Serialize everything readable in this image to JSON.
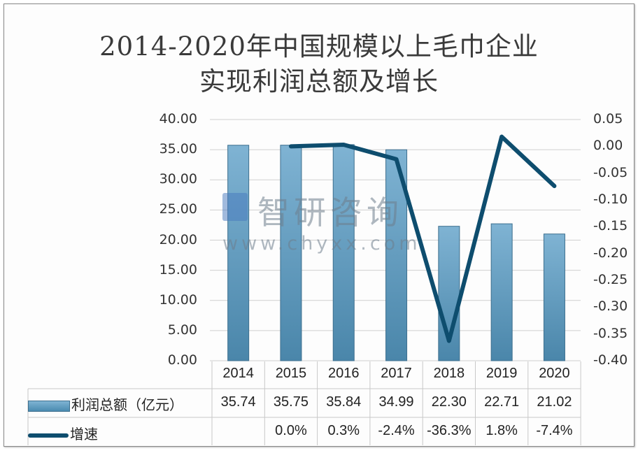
{
  "title": {
    "line1": "2014-2020年中国规模以上毛巾企业",
    "line2": "实现利润总额及增长"
  },
  "watermark": {
    "name": "智研咨询",
    "url": "www.chyxx.com"
  },
  "left_axis": {
    "ticks": [
      "40.00",
      "35.00",
      "30.00",
      "25.00",
      "20.00",
      "15.00",
      "10.00",
      "5.00",
      "0.00"
    ]
  },
  "right_axis": {
    "ticks": [
      "0.05",
      "0.00",
      "-0.05",
      "-0.10",
      "-0.15",
      "-0.20",
      "-0.25",
      "-0.30",
      "-0.35",
      "-0.40"
    ]
  },
  "table": {
    "years": [
      "2014",
      "2015",
      "2016",
      "2017",
      "2018",
      "2019",
      "2020"
    ],
    "row1_label": "利润总额（亿元）",
    "row1": [
      "35.74",
      "35.75",
      "35.84",
      "34.99",
      "22.30",
      "22.71",
      "21.02"
    ],
    "row2_label": "增速",
    "row2": [
      "",
      "0.0%",
      "0.3%",
      "-2.4%",
      "-36.3%",
      "1.8%",
      "-7.4%"
    ]
  },
  "colors": {
    "bar_top": "#7fb3d3",
    "bar_bottom": "#4a8bb0",
    "line": "#0e4d6e",
    "grid": "#d0d0d0"
  },
  "chart_data": {
    "type": "bar",
    "title": "2014-2020年中国规模以上毛巾企业实现利润总额及增长",
    "categories": [
      "2014",
      "2015",
      "2016",
      "2017",
      "2018",
      "2019",
      "2020"
    ],
    "series": [
      {
        "name": "利润总额（亿元）",
        "type": "bar",
        "axis": "left",
        "values": [
          35.74,
          35.75,
          35.84,
          34.99,
          22.3,
          22.71,
          21.02
        ]
      },
      {
        "name": "增速",
        "type": "line",
        "axis": "right",
        "values": [
          null,
          0.0,
          0.003,
          -0.024,
          -0.363,
          0.018,
          -0.074
        ]
      }
    ],
    "ylim_left": [
      0,
      40
    ],
    "ylim_right": [
      -0.4,
      0.05
    ],
    "xlabel": "",
    "ylabel": "",
    "grid": true,
    "legend_position": "data-table-bottom"
  }
}
